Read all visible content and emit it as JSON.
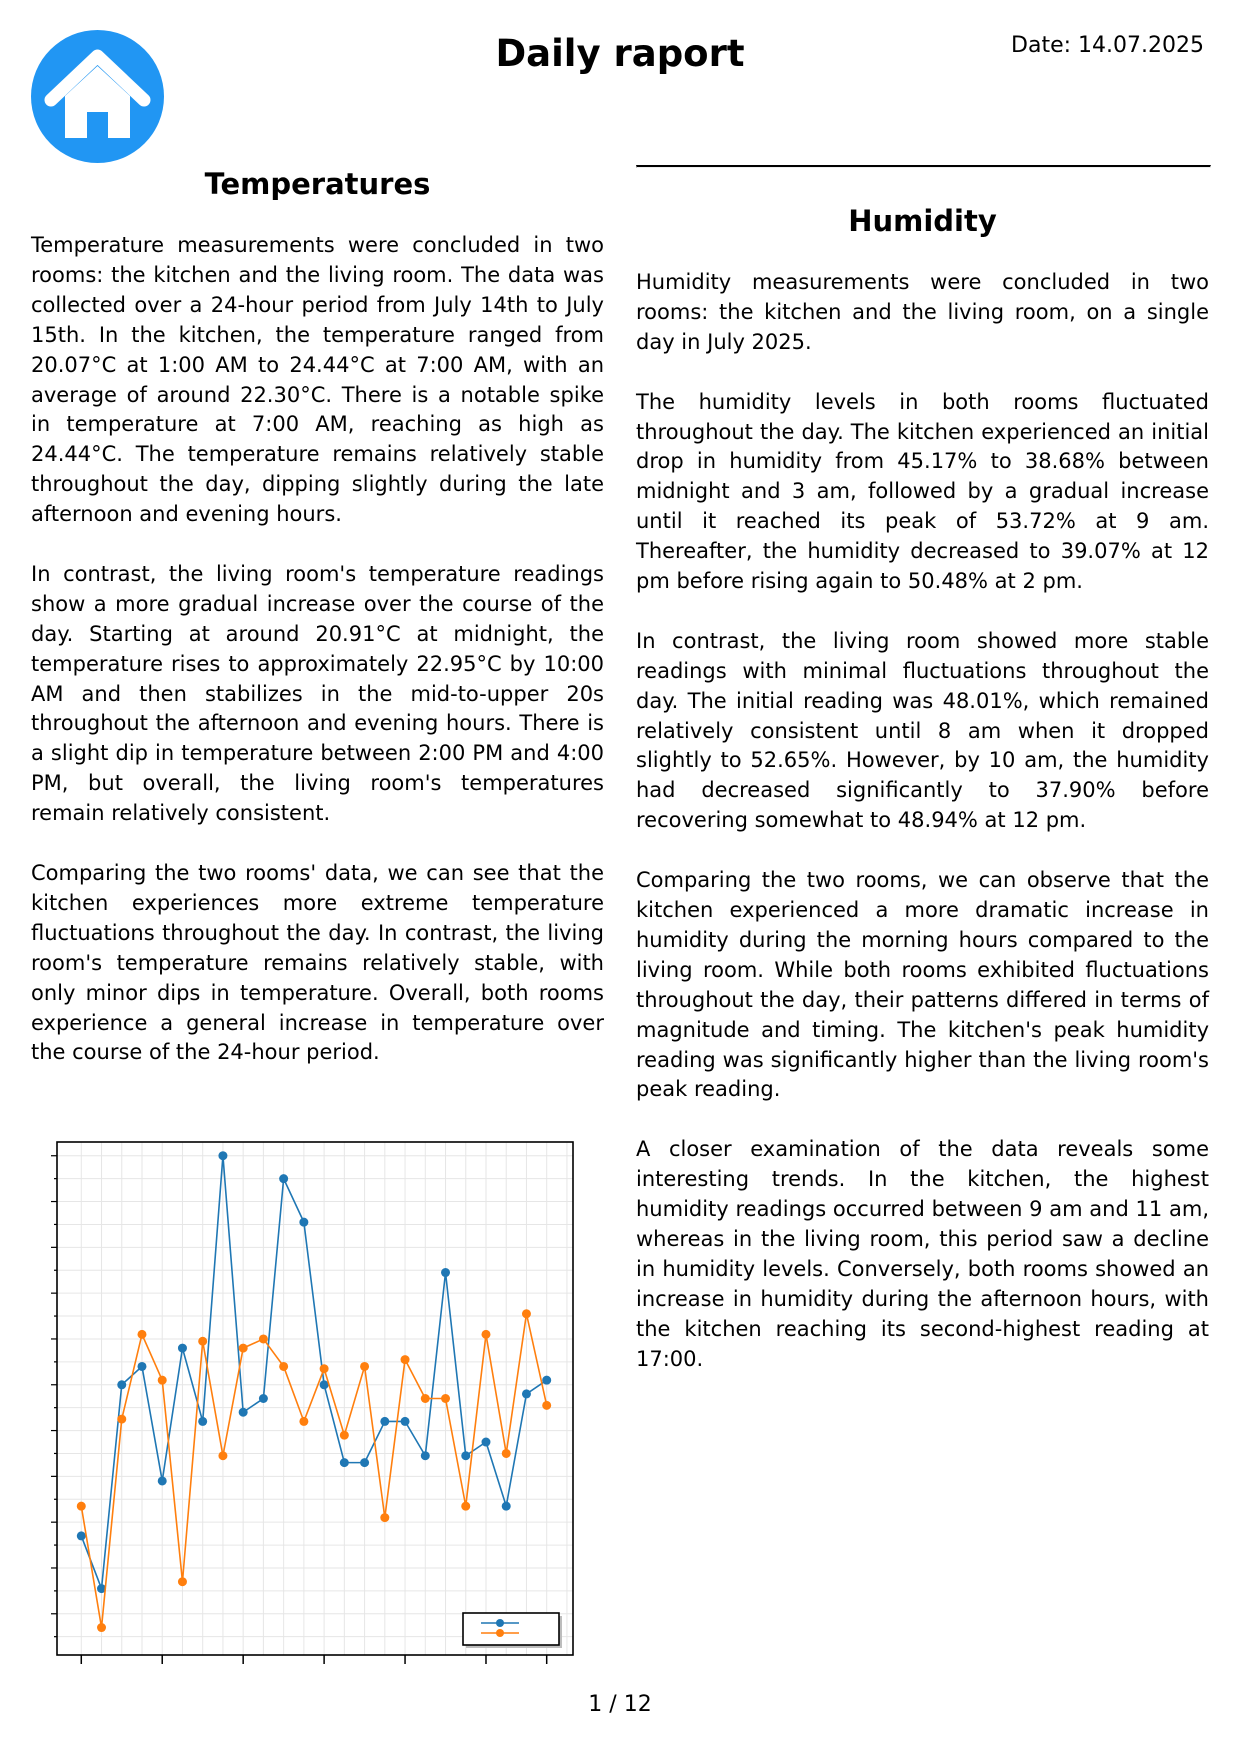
{
  "header": {
    "title": "Daily raport",
    "date": "Date: 14.07.2025",
    "logo_icon": "home-icon",
    "logo_color": "#2196f3"
  },
  "temperatures": {
    "heading": "Temperatures",
    "paragraphs": [
      "Temperature measurements were concluded in two rooms: the kitchen and the living room. The data was collected over a 24-hour period from July 14th to July 15th. In the kitchen, the temperature ranged from 20.07°C at 1:00 AM to 24.44°C at 7:00 AM, with an average of around 22.30°C. There is a notable spike in temperature at 7:00 AM, reaching as high as 24.44°C. The temperature remains relatively stable throughout the day, dipping slightly during the late afternoon and evening hours.",
      "In contrast, the living room's temperature readings show a more gradual increase over the course of the day. Starting at around 20.91°C at midnight, the temperature rises to approximately 22.95°C by 10:00 AM and then stabilizes in the mid-to-upper 20s throughout the afternoon and evening hours. There is a slight dip in temperature between 2:00 PM and 4:00 PM, but overall, the living room's temperatures remain relatively consistent.",
      "Comparing the two rooms' data, we can see that the kitchen experiences more extreme temperature fluctuations throughout the day. In contrast, the living room's temperature remains relatively stable, with only minor dips in temperature. Overall, both rooms experience a general increase in temperature over the course of the 24-hour period."
    ]
  },
  "humidity": {
    "heading": "Humidity",
    "paragraphs": [
      "Humidity measurements were concluded in two rooms: the kitchen and the living room, on a single day in July 2025.",
      "The humidity levels in both rooms fluctuated throughout the day. The kitchen experienced an initial drop in humidity from 45.17% to 38.68% between midnight and 3 am, followed by a gradual increase until it reached its peak of 53.72% at 9 am. Thereafter, the humidity decreased to 39.07% at 12 pm before rising again to 50.48% at 2 pm.",
      "In contrast, the living room showed more stable readings with minimal fluctuations throughout the day. The initial reading was 48.01%, which remained relatively consistent until 8 am when it dropped slightly to 52.65%. However, by 10 am, the humidity had decreased significantly to 37.90% before recovering somewhat to 48.94% at 12 pm.",
      "Comparing the two rooms, we can observe that the kitchen experienced a more dramatic increase in humidity during the morning hours compared to the living room. While both rooms exhibited fluctuations throughout the day, their patterns differed in terms of magnitude and timing. The kitchen's peak humidity reading was significantly higher than the living room's peak reading.",
      "A closer examination of the data reveals some interesting trends. In the kitchen, the highest humidity readings occurred between 9 am and 11 am, whereas in the living room, this period saw a decline in humidity levels. Conversely, both rooms showed an increase in humidity during the afternoon hours, with the kitchen reaching its second-highest reading at 17:00."
    ]
  },
  "chart_data": {
    "type": "line",
    "x": [
      0,
      1,
      2,
      3,
      4,
      5,
      6,
      7,
      8,
      9,
      10,
      11,
      12,
      13,
      14,
      15,
      16,
      17,
      18,
      19,
      20,
      21,
      22,
      23
    ],
    "series": [
      {
        "color": "#1f77b4",
        "values": [
          2.7,
          1.55,
          6.0,
          6.4,
          3.9,
          6.8,
          5.2,
          11.0,
          5.4,
          5.7,
          10.5,
          9.55,
          6.0,
          4.3,
          4.3,
          5.2,
          5.2,
          4.45,
          8.45,
          4.45,
          4.75,
          3.35,
          5.8,
          6.1
        ]
      },
      {
        "color": "#ff7f0e",
        "values": [
          3.35,
          0.7,
          5.25,
          7.1,
          6.1,
          1.7,
          6.95,
          4.45,
          6.8,
          7.0,
          6.4,
          5.2,
          6.35,
          4.9,
          6.4,
          3.1,
          6.55,
          5.7,
          5.7,
          3.35,
          7.1,
          4.5,
          7.55,
          5.55
        ]
      }
    ],
    "xticks": [
      0,
      4,
      8,
      12,
      16,
      20,
      23
    ],
    "ylim": [
      0.1,
      11.3
    ],
    "grid": true,
    "legend": "bottom-right"
  },
  "footer": {
    "page": "1 / 12"
  }
}
